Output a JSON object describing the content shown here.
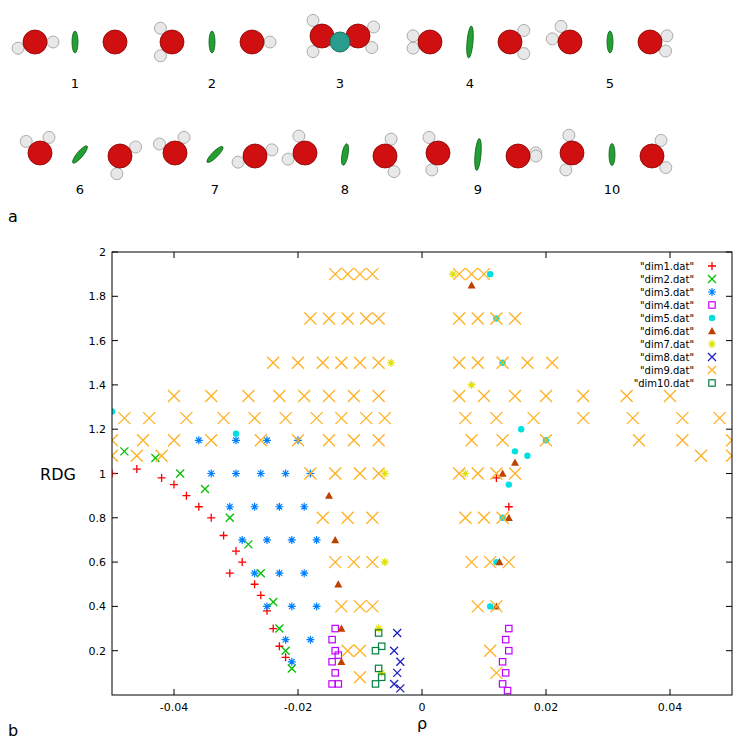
{
  "panel_labels": [
    "a",
    "b"
  ],
  "structures": [
    {
      "label": "1"
    },
    {
      "label": "2"
    },
    {
      "label": "3"
    },
    {
      "label": "4"
    },
    {
      "label": "5"
    },
    {
      "label": "6"
    },
    {
      "label": "7"
    },
    {
      "label": "8"
    },
    {
      "label": "9"
    },
    {
      "label": "10"
    }
  ],
  "chart_data": {
    "type": "scatter",
    "x_label": "ρ",
    "y_label": "RDG",
    "xlim": [
      -0.05,
      0.05
    ],
    "xticks": [
      -0.04,
      -0.02,
      0,
      0.02,
      0.04
    ],
    "ylim": [
      0,
      2
    ],
    "yticks": [
      0.2,
      0.4,
      0.6,
      0.8,
      1,
      1.2,
      1.4,
      1.6,
      1.8,
      2
    ],
    "legend": "upper right",
    "grid": false,
    "series": [
      {
        "name": "\"dim1.dat\"",
        "color": "#ff0000",
        "marker": "plus",
        "x": [
          -0.05,
          -0.046,
          -0.042,
          -0.04,
          -0.038,
          -0.036,
          -0.034,
          -0.032,
          -0.031,
          -0.03,
          -0.029,
          -0.027,
          -0.026,
          -0.025,
          -0.024,
          -0.023,
          -0.022,
          0.012,
          0.014
        ],
        "values": [
          1.0,
          1.02,
          0.98,
          0.95,
          0.9,
          0.85,
          0.8,
          0.72,
          0.55,
          0.65,
          0.6,
          0.5,
          0.45,
          0.38,
          0.3,
          0.22,
          0.17,
          0.98,
          0.85
        ]
      },
      {
        "name": "\"dim2.dat\"",
        "color": "#00c000",
        "marker": "cross",
        "x": [
          -0.048,
          -0.043,
          -0.039,
          -0.035,
          -0.031,
          -0.028,
          -0.026,
          -0.024,
          -0.023,
          -0.022,
          -0.021
        ],
        "values": [
          1.1,
          1.07,
          1.0,
          0.93,
          0.8,
          0.68,
          0.55,
          0.42,
          0.3,
          0.2,
          0.12
        ]
      },
      {
        "name": "\"dim3.dat\"",
        "color": "#0080ff",
        "marker": "star",
        "x": [
          -0.036,
          -0.03,
          -0.025,
          -0.02,
          -0.034,
          -0.03,
          -0.026,
          -0.022,
          -0.018,
          -0.031,
          -0.027,
          -0.023,
          -0.019,
          -0.029,
          -0.025,
          -0.021,
          -0.017,
          -0.027,
          -0.023,
          -0.019,
          -0.025,
          -0.021,
          -0.017,
          -0.022,
          -0.018,
          -0.021
        ],
        "values": [
          1.15,
          1.15,
          1.15,
          1.15,
          1.0,
          1.0,
          1.0,
          1.0,
          1.0,
          0.85,
          0.85,
          0.85,
          0.85,
          0.7,
          0.7,
          0.7,
          0.7,
          0.55,
          0.55,
          0.55,
          0.4,
          0.4,
          0.4,
          0.25,
          0.25,
          0.15
        ]
      },
      {
        "name": "\"dim4.dat\"",
        "color": "#c000ff",
        "marker": "square",
        "x": [
          -0.0145,
          -0.0145,
          -0.0145,
          -0.014,
          -0.014,
          -0.014,
          -0.0135,
          -0.0135,
          0.013,
          0.013,
          0.0135,
          0.0135,
          0.014,
          0.014,
          0.0138
        ],
        "values": [
          0.05,
          0.15,
          0.25,
          0.1,
          0.2,
          0.3,
          0.05,
          0.18,
          0.05,
          0.15,
          0.25,
          0.1,
          0.2,
          0.3,
          0.02
        ]
      },
      {
        "name": "\"dim5.dat\"",
        "color": "#00e0e0",
        "marker": "circle",
        "x": [
          0.016,
          0.02,
          0.015,
          0.014,
          0.013,
          0.012,
          0.011,
          0.017,
          0.012,
          0.011,
          0.013,
          -0.05,
          -0.03
        ],
        "values": [
          1.2,
          1.15,
          1.1,
          0.95,
          0.8,
          0.6,
          0.4,
          1.08,
          1.7,
          1.9,
          1.5,
          1.28,
          1.18
        ]
      },
      {
        "name": "\"dim6.dat\"",
        "color": "#c04000",
        "marker": "triangle",
        "x": [
          -0.015,
          -0.014,
          -0.0135,
          -0.013,
          -0.013,
          0.013,
          0.014,
          0.0125,
          0.012,
          0.015,
          0.008
        ],
        "values": [
          0.9,
          0.7,
          0.5,
          0.3,
          0.15,
          1.0,
          0.8,
          0.6,
          0.4,
          1.05,
          1.85
        ]
      },
      {
        "name": "\"dim7.dat\"",
        "color": "#e0e000",
        "marker": "star",
        "x": [
          -0.006,
          -0.007,
          -0.006,
          -0.005,
          0.005,
          0.008,
          0.007,
          -0.0065
        ],
        "values": [
          0.6,
          0.3,
          1.0,
          1.5,
          1.9,
          1.4,
          1.0,
          0.1
        ]
      },
      {
        "name": "\"dim8.dat\"",
        "color": "#2020c0",
        "marker": "cross",
        "x": [
          -0.0045,
          -0.0045,
          -0.004,
          -0.004,
          -0.0035,
          -0.0035
        ],
        "values": [
          0.05,
          0.2,
          0.1,
          0.28,
          0.15,
          0.03
        ]
      },
      {
        "name": "\"dim9.dat\"",
        "color": "#ffb020",
        "marker": "cross",
        "x": [
          -0.014,
          -0.012,
          -0.01,
          -0.008,
          -0.018,
          -0.015,
          -0.012,
          -0.009,
          -0.007,
          -0.024,
          -0.02,
          -0.016,
          -0.013,
          -0.01,
          -0.007,
          -0.04,
          -0.034,
          -0.028,
          -0.023,
          -0.019,
          -0.015,
          -0.011,
          -0.007,
          -0.048,
          -0.044,
          -0.038,
          -0.032,
          -0.027,
          -0.022,
          -0.017,
          -0.013,
          -0.009,
          -0.006,
          -0.05,
          -0.045,
          -0.04,
          -0.034,
          -0.026,
          -0.02,
          -0.015,
          -0.011,
          -0.007,
          -0.05,
          -0.046,
          -0.042,
          -0.018,
          -0.014,
          -0.01,
          -0.007,
          -0.016,
          -0.012,
          -0.008,
          -0.014,
          -0.011,
          -0.008,
          -0.013,
          -0.01,
          -0.008,
          -0.012,
          -0.01,
          -0.01,
          0.006,
          0.008,
          0.01,
          0.006,
          0.009,
          0.012,
          0.015,
          0.006,
          0.009,
          0.013,
          0.017,
          0.021,
          0.006,
          0.01,
          0.015,
          0.02,
          0.026,
          0.033,
          0.04,
          0.007,
          0.012,
          0.018,
          0.026,
          0.034,
          0.042,
          0.048,
          0.008,
          0.013,
          0.02,
          0.035,
          0.042,
          0.05,
          0.045,
          0.05,
          0.006,
          0.009,
          0.012,
          0.015,
          0.007,
          0.01,
          0.013,
          0.008,
          0.011,
          0.014,
          0.009,
          0.012,
          0.011,
          0.012
        ],
        "values": [
          1.9,
          1.9,
          1.9,
          1.9,
          1.7,
          1.7,
          1.7,
          1.7,
          1.7,
          1.5,
          1.5,
          1.5,
          1.5,
          1.5,
          1.5,
          1.35,
          1.35,
          1.35,
          1.35,
          1.35,
          1.35,
          1.35,
          1.35,
          1.25,
          1.25,
          1.25,
          1.25,
          1.25,
          1.25,
          1.25,
          1.25,
          1.25,
          1.25,
          1.15,
          1.15,
          1.15,
          1.15,
          1.15,
          1.15,
          1.15,
          1.15,
          1.15,
          1.08,
          1.08,
          1.08,
          1.0,
          1.0,
          1.0,
          1.0,
          0.8,
          0.8,
          0.8,
          0.6,
          0.6,
          0.6,
          0.4,
          0.4,
          0.4,
          0.2,
          0.2,
          0.08,
          1.9,
          1.9,
          1.9,
          1.7,
          1.7,
          1.7,
          1.7,
          1.5,
          1.5,
          1.5,
          1.5,
          1.5,
          1.35,
          1.35,
          1.35,
          1.35,
          1.35,
          1.35,
          1.35,
          1.25,
          1.25,
          1.25,
          1.25,
          1.25,
          1.25,
          1.25,
          1.15,
          1.15,
          1.15,
          1.15,
          1.15,
          1.15,
          1.08,
          1.08,
          1.0,
          1.0,
          1.0,
          1.0,
          0.8,
          0.8,
          0.8,
          0.6,
          0.6,
          0.6,
          0.4,
          0.4,
          0.2,
          0.1
        ]
      },
      {
        "name": "\"dim10.dat\"",
        "color": "#008040",
        "marker": "square",
        "x": [
          -0.0075,
          -0.0075,
          -0.007,
          -0.007,
          -0.0065,
          -0.0065
        ],
        "values": [
          0.05,
          0.2,
          0.12,
          0.28,
          0.08,
          0.22
        ]
      }
    ]
  }
}
